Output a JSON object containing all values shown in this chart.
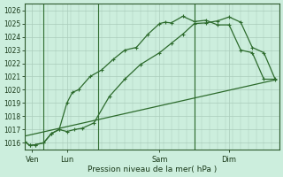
{
  "background_color": "#cceedd",
  "grid_color": "#aaccbb",
  "line_color": "#2d6b2d",
  "xlabel": "Pression niveau de la mer( hPa )",
  "ylim": [
    1015.5,
    1026.5
  ],
  "yticks": [
    1016,
    1017,
    1018,
    1019,
    1020,
    1021,
    1022,
    1023,
    1024,
    1025,
    1026
  ],
  "xlim": [
    0,
    33
  ],
  "xtick_labels": [
    "Ven",
    "Lun",
    "Sam",
    "Dim"
  ],
  "xtick_positions": [
    1.0,
    5.5,
    17.5,
    26.5
  ],
  "vline_positions": [
    2.5,
    9.5,
    22.0
  ],
  "series1_x": [
    0.0,
    0.7,
    1.4,
    2.5,
    3.5,
    4.5,
    5.5,
    6.2,
    7.0,
    8.5,
    10.0,
    11.5,
    13.0,
    14.5,
    16.0,
    17.5,
    18.2,
    19.0,
    20.5,
    22.0,
    23.5,
    25.0,
    26.5,
    28.0,
    29.5,
    31.0,
    32.5
  ],
  "series1_y": [
    1016.1,
    1015.8,
    1015.85,
    1016.0,
    1016.7,
    1017.0,
    1019.0,
    1019.8,
    1020.0,
    1021.0,
    1021.5,
    1022.3,
    1023.0,
    1023.2,
    1024.2,
    1025.0,
    1025.1,
    1025.05,
    1025.55,
    1025.15,
    1025.25,
    1024.9,
    1024.9,
    1023.0,
    1022.8,
    1020.8,
    1020.8
  ],
  "series2_x": [
    0.0,
    0.7,
    1.4,
    2.5,
    3.5,
    4.5,
    5.5,
    6.5,
    7.5,
    9.0,
    11.0,
    13.0,
    15.0,
    17.5,
    19.0,
    20.5,
    22.0,
    23.5,
    25.0,
    26.5,
    28.0,
    29.5,
    31.0,
    32.5
  ],
  "series2_y": [
    1016.1,
    1015.8,
    1015.85,
    1016.0,
    1016.7,
    1017.0,
    1016.85,
    1017.0,
    1017.1,
    1017.5,
    1019.5,
    1020.8,
    1021.9,
    1022.8,
    1023.5,
    1024.2,
    1025.0,
    1025.05,
    1025.2,
    1025.5,
    1025.1,
    1023.2,
    1022.8,
    1020.75
  ],
  "trend_x": [
    0.0,
    32.5
  ],
  "trend_y": [
    1016.5,
    1020.75
  ]
}
